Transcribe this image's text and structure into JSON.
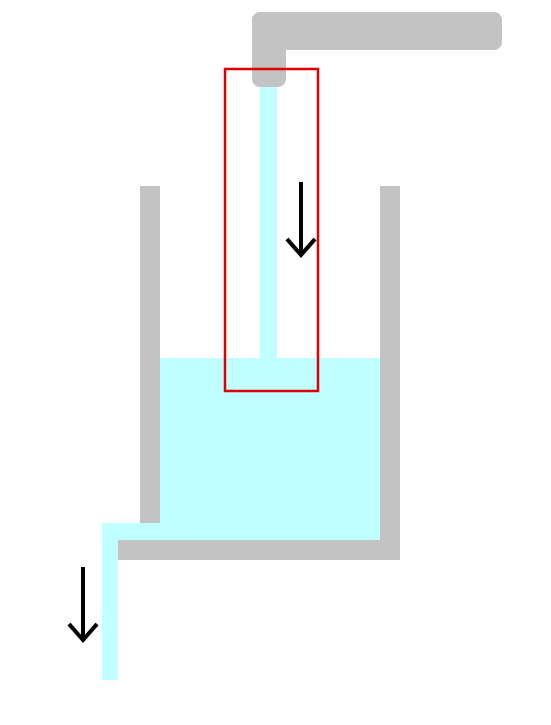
{
  "diagram": {
    "colors": {
      "background": "#ffffff",
      "pipe": "#c3c3c3",
      "container": "#c3c3c3",
      "water": "#bfffff",
      "highlight": "#e00000",
      "arrow": "#000000"
    },
    "elements": {
      "faucet": "faucet-pipe",
      "inflow": "inflow-stream",
      "tank": "tank-container",
      "tank_water": "tank-water",
      "outflow": "outflow-stream",
      "inflow_arrow": "down-arrow-icon",
      "outflow_arrow": "down-arrow-icon",
      "highlight": "highlight-box"
    }
  }
}
